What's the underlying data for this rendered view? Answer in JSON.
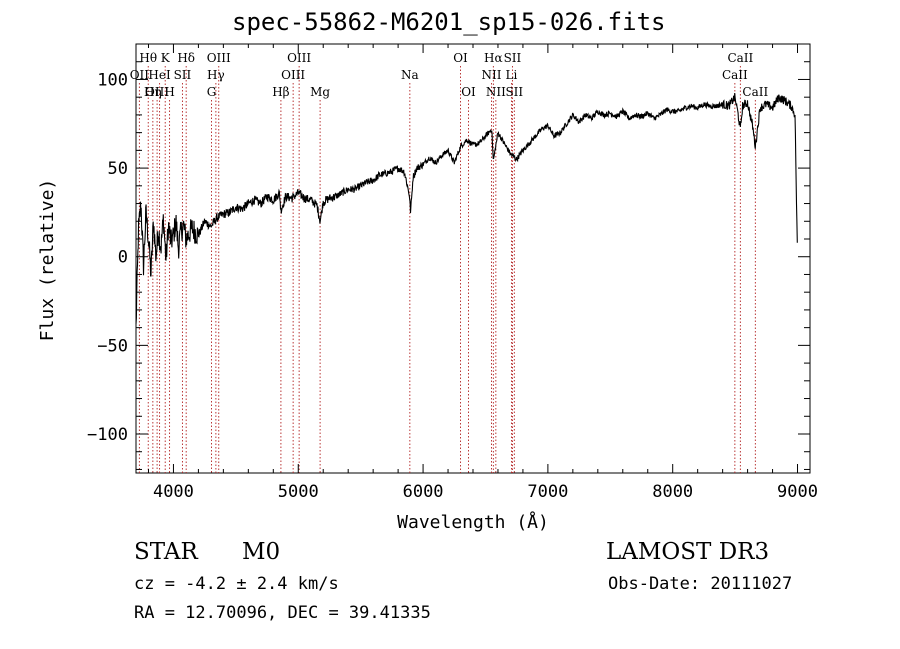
{
  "chart_data": {
    "type": "line",
    "title": "spec-55862-M6201_sp15-026.fits",
    "xlabel": "Wavelength (Å)",
    "ylabel": "Flux (relative)",
    "xlim": [
      3700,
      9100
    ],
    "ylim": [
      -122,
      120
    ],
    "xticks": [
      4000,
      5000,
      6000,
      7000,
      8000,
      9000
    ],
    "yticks": [
      -100,
      -50,
      0,
      50,
      100
    ],
    "series": [
      {
        "name": "flux",
        "x": [
          3700,
          3720,
          3740,
          3760,
          3780,
          3800,
          3820,
          3840,
          3860,
          3880,
          3900,
          3920,
          3940,
          3960,
          3980,
          4000,
          4020,
          4040,
          4060,
          4080,
          4100,
          4150,
          4200,
          4250,
          4300,
          4350,
          4400,
          4450,
          4500,
          4550,
          4600,
          4650,
          4700,
          4750,
          4800,
          4850,
          4860,
          4900,
          4950,
          5000,
          5050,
          5100,
          5150,
          5175,
          5200,
          5250,
          5300,
          5350,
          5400,
          5450,
          5500,
          5550,
          5600,
          5650,
          5700,
          5750,
          5800,
          5850,
          5890,
          5900,
          5920,
          5950,
          6000,
          6050,
          6100,
          6150,
          6200,
          6250,
          6300,
          6350,
          6400,
          6450,
          6500,
          6550,
          6563,
          6600,
          6650,
          6700,
          6750,
          6800,
          6850,
          6900,
          6950,
          7000,
          7050,
          7100,
          7150,
          7200,
          7250,
          7300,
          7350,
          7400,
          7450,
          7500,
          7550,
          7600,
          7650,
          7700,
          7750,
          7800,
          7850,
          7900,
          7950,
          8000,
          8050,
          8100,
          8150,
          8200,
          8250,
          8300,
          8350,
          8400,
          8450,
          8498,
          8520,
          8542,
          8560,
          8600,
          8620,
          8640,
          8662,
          8700,
          8750,
          8800,
          8850,
          8900,
          8950,
          8980,
          9000
        ],
        "y": [
          -40,
          15,
          30,
          -5,
          25,
          10,
          -10,
          20,
          0,
          15,
          5,
          22,
          -2,
          18,
          8,
          12,
          20,
          5,
          14,
          18,
          10,
          16,
          12,
          20,
          17,
          22,
          24,
          25,
          28,
          27,
          30,
          32,
          30,
          34,
          32,
          36,
          26,
          34,
          33,
          36,
          33,
          32,
          29,
          20,
          31,
          33,
          34,
          36,
          38,
          38,
          40,
          42,
          43,
          46,
          47,
          48,
          50,
          48,
          35,
          25,
          45,
          50,
          52,
          56,
          53,
          57,
          60,
          53,
          62,
          66,
          63,
          64,
          68,
          72,
          54,
          70,
          64,
          58,
          55,
          60,
          64,
          68,
          72,
          74,
          68,
          70,
          75,
          80,
          76,
          80,
          78,
          82,
          80,
          81,
          79,
          82,
          78,
          80,
          79,
          81,
          78,
          80,
          83,
          82,
          82,
          84,
          85,
          84,
          86,
          85,
          85,
          86,
          85,
          90,
          82,
          72,
          85,
          87,
          80,
          74,
          62,
          84,
          86,
          84,
          90,
          88,
          85,
          80,
          -2
        ]
      }
    ],
    "line_markers": [
      {
        "label": "Hθ",
        "x": 3798,
        "row": 0
      },
      {
        "label": "OII",
        "x": 3727,
        "row": 1
      },
      {
        "label": "OIII",
        "x": 3869,
        "row": 2
      },
      {
        "label": "K",
        "x": 3934,
        "row": 0
      },
      {
        "label": "HeI",
        "x": 3889,
        "row": 1
      },
      {
        "label": "Hη",
        "x": 3835,
        "row": 2
      },
      {
        "label": "Hδ",
        "x": 4102,
        "row": 0
      },
      {
        "label": "SII",
        "x": 4072,
        "row": 1
      },
      {
        "label": "H",
        "x": 3969,
        "row": 2
      },
      {
        "label": "OIII",
        "x": 4363,
        "row": 0
      },
      {
        "label": "Hγ",
        "x": 4340,
        "row": 1
      },
      {
        "label": "G",
        "x": 4305,
        "row": 2
      },
      {
        "label": "OIII",
        "x": 5007,
        "row": 0
      },
      {
        "label": "OIII",
        "x": 4959,
        "row": 1
      },
      {
        "label": "Hβ",
        "x": 4861,
        "row": 2
      },
      {
        "label": "Mg",
        "x": 5175,
        "row": 2
      },
      {
        "label": "Na",
        "x": 5894,
        "row": 1
      },
      {
        "label": "OI",
        "x": 6300,
        "row": 0
      },
      {
        "label": "OI",
        "x": 6364,
        "row": 2
      },
      {
        "label": "Hα",
        "x": 6563,
        "row": 0
      },
      {
        "label": "SII",
        "x": 6716,
        "row": 0
      },
      {
        "label": "NII",
        "x": 6548,
        "row": 1
      },
      {
        "label": "Li",
        "x": 6708,
        "row": 1
      },
      {
        "label": "NII",
        "x": 6583,
        "row": 2
      },
      {
        "label": "SII",
        "x": 6731,
        "row": 2
      },
      {
        "label": "CaII",
        "x": 8542,
        "row": 0
      },
      {
        "label": "CaII",
        "x": 8498,
        "row": 1
      },
      {
        "label": "CaII",
        "x": 8662,
        "row": 2
      }
    ]
  },
  "info": {
    "object_type": "STAR",
    "subclass": "M0",
    "survey": "LAMOST DR3",
    "cz": "cz = -4.2 ± 2.4 km/s",
    "obs_date": "Obs-Date: 20111027",
    "radec": "RA =  12.70096, DEC =  39.41335"
  }
}
